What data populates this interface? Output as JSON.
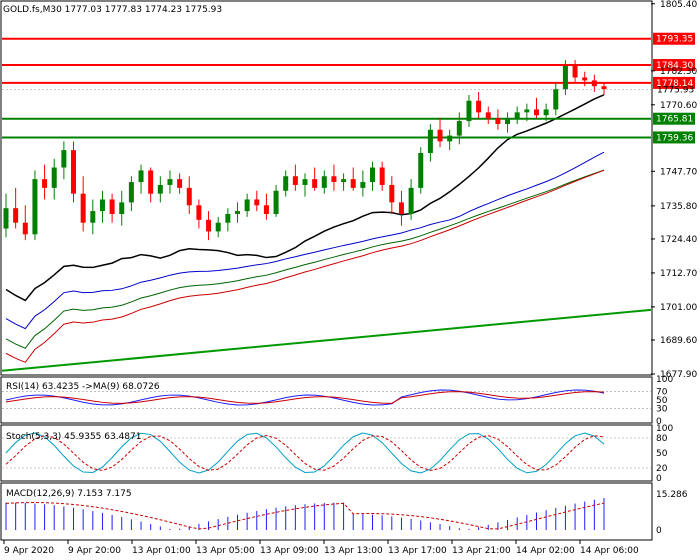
{
  "header": {
    "symbol_line": "GOLD.fs,M30  1777.03 1777.83 1774.23 1775.93"
  },
  "price_axis": {
    "ticks": [
      "1805.40",
      "1782.30",
      "1770.60",
      "1747.70",
      "1735.80",
      "1724.40",
      "1712.70",
      "1701.00",
      "1689.60",
      "1677.90"
    ],
    "min": 1677.9,
    "max": 1806.0
  },
  "levels": [
    {
      "label": "1793.35",
      "value": 1793.35,
      "color": "#ff0000",
      "kind": "resistance"
    },
    {
      "label": "1784.30",
      "value": 1784.3,
      "color": "#ff0000",
      "kind": "resistance"
    },
    {
      "label": "1778.14",
      "value": 1778.14,
      "color": "#ff0000",
      "kind": "resistance"
    },
    {
      "label": "1765.81",
      "value": 1765.81,
      "color": "#008000",
      "kind": "support"
    },
    {
      "label": "1759.36",
      "value": 1759.36,
      "color": "#008000",
      "kind": "support"
    }
  ],
  "current_price": {
    "label": "1775.93",
    "value": 1775.93
  },
  "time_axis": {
    "labels": [
      "9 Apr 2020",
      "9 Apr 20:00",
      "13 Apr 01:00",
      "13 Apr 05:00",
      "13 Apr 09:00",
      "13 Apr 13:00",
      "13 Apr 17:00",
      "13 Apr 21:00",
      "14 Apr 02:00",
      "14 Apr 06:00"
    ]
  },
  "rsi_panel": {
    "title": "RSI(14) 63.4235  ->MA(9) 68.0726",
    "ticks": [
      "100",
      "70",
      "50",
      "30",
      "0"
    ]
  },
  "stoch_panel": {
    "title": "Stoch(5,3,3) 45.9355 63.4871",
    "ticks": [
      "100",
      "80",
      "50",
      "20",
      "0"
    ]
  },
  "macd_panel": {
    "title": "MACD(12,26,9) 7.153 7.175",
    "ticks": [
      "15.286",
      "0"
    ]
  },
  "colors": {
    "bull": "#008000",
    "bear": "#ff0000",
    "ma_fast": "#000000",
    "ma_mid": "#0000cc",
    "ma_slow": "#006400",
    "ma_200": "#cc0000",
    "trend": "#009900"
  },
  "chart_data": {
    "type": "candlestick",
    "symbol": "GOLD.fs",
    "timeframe": "M30",
    "candles": [
      [
        1728,
        1740,
        1725,
        1735
      ],
      [
        1735,
        1742,
        1728,
        1730
      ],
      [
        1730,
        1736,
        1724,
        1726
      ],
      [
        1726,
        1748,
        1724,
        1745
      ],
      [
        1745,
        1750,
        1738,
        1742
      ],
      [
        1742,
        1752,
        1738,
        1749
      ],
      [
        1749,
        1758,
        1745,
        1755
      ],
      [
        1755,
        1758,
        1737,
        1740
      ],
      [
        1740,
        1746,
        1727,
        1730
      ],
      [
        1730,
        1738,
        1726,
        1734
      ],
      [
        1734,
        1741,
        1730,
        1738
      ],
      [
        1738,
        1740,
        1730,
        1733
      ],
      [
        1733,
        1741,
        1729,
        1737
      ],
      [
        1737,
        1746,
        1734,
        1744
      ],
      [
        1744,
        1750,
        1740,
        1748
      ],
      [
        1748,
        1749,
        1737,
        1740
      ],
      [
        1740,
        1746,
        1737,
        1743
      ],
      [
        1743,
        1748,
        1740,
        1745
      ],
      [
        1745,
        1747,
        1740,
        1742
      ],
      [
        1742,
        1746,
        1733,
        1736
      ],
      [
        1736,
        1738,
        1728,
        1731
      ],
      [
        1731,
        1734,
        1724,
        1727
      ],
      [
        1727,
        1732,
        1725,
        1730
      ],
      [
        1730,
        1735,
        1727,
        1733
      ],
      [
        1733,
        1737,
        1730,
        1734
      ],
      [
        1734,
        1740,
        1732,
        1738
      ],
      [
        1738,
        1741,
        1734,
        1736
      ],
      [
        1736,
        1740,
        1731,
        1733
      ],
      [
        1733,
        1743,
        1732,
        1741
      ],
      [
        1741,
        1748,
        1739,
        1746
      ],
      [
        1746,
        1750,
        1741,
        1743
      ],
      [
        1743,
        1747,
        1739,
        1745
      ],
      [
        1745,
        1749,
        1741,
        1742
      ],
      [
        1742,
        1748,
        1740,
        1746
      ],
      [
        1746,
        1750,
        1741,
        1744
      ],
      [
        1744,
        1747,
        1741,
        1745
      ],
      [
        1745,
        1749,
        1741,
        1742
      ],
      [
        1742,
        1748,
        1739,
        1744
      ],
      [
        1744,
        1751,
        1741,
        1749
      ],
      [
        1749,
        1751,
        1741,
        1743
      ],
      [
        1743,
        1746,
        1733,
        1737
      ],
      [
        1737,
        1741,
        1729,
        1733
      ],
      [
        1733,
        1745,
        1731,
        1742
      ],
      [
        1742,
        1756,
        1740,
        1754
      ],
      [
        1754,
        1764,
        1751,
        1762
      ],
      [
        1762,
        1766,
        1756,
        1758
      ],
      [
        1758,
        1762,
        1755,
        1760
      ],
      [
        1760,
        1768,
        1757,
        1765
      ],
      [
        1765,
        1774,
        1763,
        1772
      ],
      [
        1772,
        1775,
        1766,
        1768
      ],
      [
        1768,
        1770,
        1764,
        1766
      ],
      [
        1766,
        1769,
        1762,
        1764
      ],
      [
        1764,
        1768,
        1761,
        1766
      ],
      [
        1766,
        1770,
        1764,
        1768
      ],
      [
        1768,
        1771,
        1765,
        1769
      ],
      [
        1769,
        1773,
        1766,
        1767
      ],
      [
        1767,
        1771,
        1765,
        1769
      ],
      [
        1769,
        1778,
        1767,
        1776
      ],
      [
        1776,
        1786,
        1774,
        1784
      ],
      [
        1784,
        1786,
        1778,
        1780
      ],
      [
        1780,
        1782,
        1777,
        1779
      ],
      [
        1779,
        1781,
        1775,
        1777
      ],
      [
        1777,
        1778,
        1774,
        1776
      ]
    ]
  }
}
